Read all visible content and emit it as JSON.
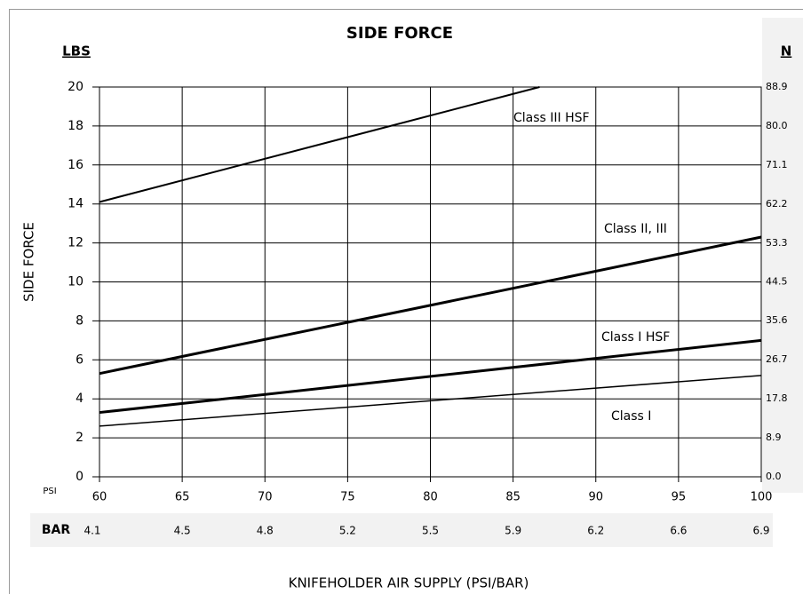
{
  "chart_data": {
    "type": "line",
    "title": "SIDE FORCE",
    "y_label": "SIDE FORCE",
    "x_label": "KNIFEHOLDER AIR SUPPLY (PSI/BAR)",
    "y_unit": "LBS",
    "y2_unit": "N",
    "x_unit": "PSI",
    "x2_unit": "BAR",
    "xlim": [
      60,
      100
    ],
    "xticks": [
      60,
      65,
      70,
      75,
      80,
      85,
      90,
      95,
      100
    ],
    "x2ticks": [
      4.1,
      4.5,
      4.8,
      5.2,
      5.5,
      5.9,
      6.2,
      6.6,
      6.9
    ],
    "ylim": [
      0,
      20
    ],
    "yticks": [
      0,
      2,
      4,
      6,
      8,
      10,
      12,
      14,
      16,
      18,
      20
    ],
    "y2lim": [
      0,
      88.9
    ],
    "y2ticks": [
      {
        "value": 0,
        "label": "0.0"
      },
      8.9,
      17.8,
      26.7,
      35.6,
      44.5,
      53.3,
      62.2,
      71.1,
      {
        "value": 80,
        "label": "80.0"
      },
      88.9
    ],
    "grid": true,
    "series": [
      {
        "name": "Class III HSF",
        "color": "#000000",
        "line_width": 2,
        "x": [
          60,
          86.6
        ],
        "values": [
          14.1,
          20
        ]
      },
      {
        "name": "Class II, III",
        "color": "#000000",
        "line_width": 3,
        "x": [
          60,
          100
        ],
        "values": [
          5.3,
          12.3
        ]
      },
      {
        "name": "Class I HSF",
        "color": "#000000",
        "line_width": 3,
        "x": [
          60,
          100
        ],
        "values": [
          3.3,
          7.0
        ]
      },
      {
        "name": "Class I",
        "color": "#000000",
        "line_width": 1.5,
        "x": [
          60,
          100
        ],
        "values": [
          2.6,
          5.2
        ]
      }
    ]
  }
}
